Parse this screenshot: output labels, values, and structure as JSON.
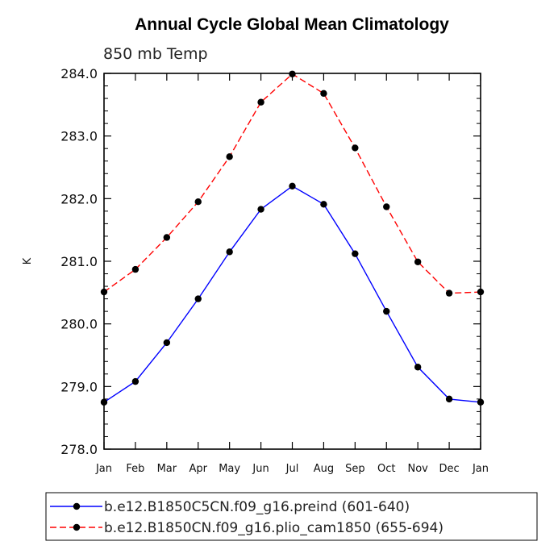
{
  "chart_data": {
    "type": "line",
    "title": "Annual Cycle Global Mean Climatology",
    "subtitle": "850 mb Temp",
    "xlabel": "",
    "ylabel": "K",
    "ylim": [
      278.0,
      284.0
    ],
    "yticks": [
      "278.0",
      "279.0",
      "280.0",
      "281.0",
      "282.0",
      "283.0",
      "284.0"
    ],
    "categories": [
      "Jan",
      "Feb",
      "Mar",
      "Apr",
      "May",
      "Jun",
      "Jul",
      "Aug",
      "Sep",
      "Oct",
      "Nov",
      "Dec",
      "Jan"
    ],
    "grid": false,
    "legend_position": "bottom",
    "series": [
      {
        "name": "b.e12.B1850C5CN.f09_g16.preind (601-640)",
        "color": "#0000ff",
        "dash": "solid",
        "values": [
          278.75,
          279.08,
          279.7,
          280.4,
          281.15,
          281.83,
          282.2,
          281.91,
          281.12,
          280.2,
          279.31,
          278.8,
          278.75
        ]
      },
      {
        "name": "b.e12.B1850CN.f09_g16.plio_cam1850 (655-694)",
        "color": "#ff0000",
        "dash": "dashed",
        "values": [
          280.51,
          280.87,
          281.38,
          281.95,
          282.67,
          283.54,
          283.99,
          283.68,
          282.81,
          281.87,
          280.99,
          280.49,
          280.51
        ]
      }
    ]
  }
}
